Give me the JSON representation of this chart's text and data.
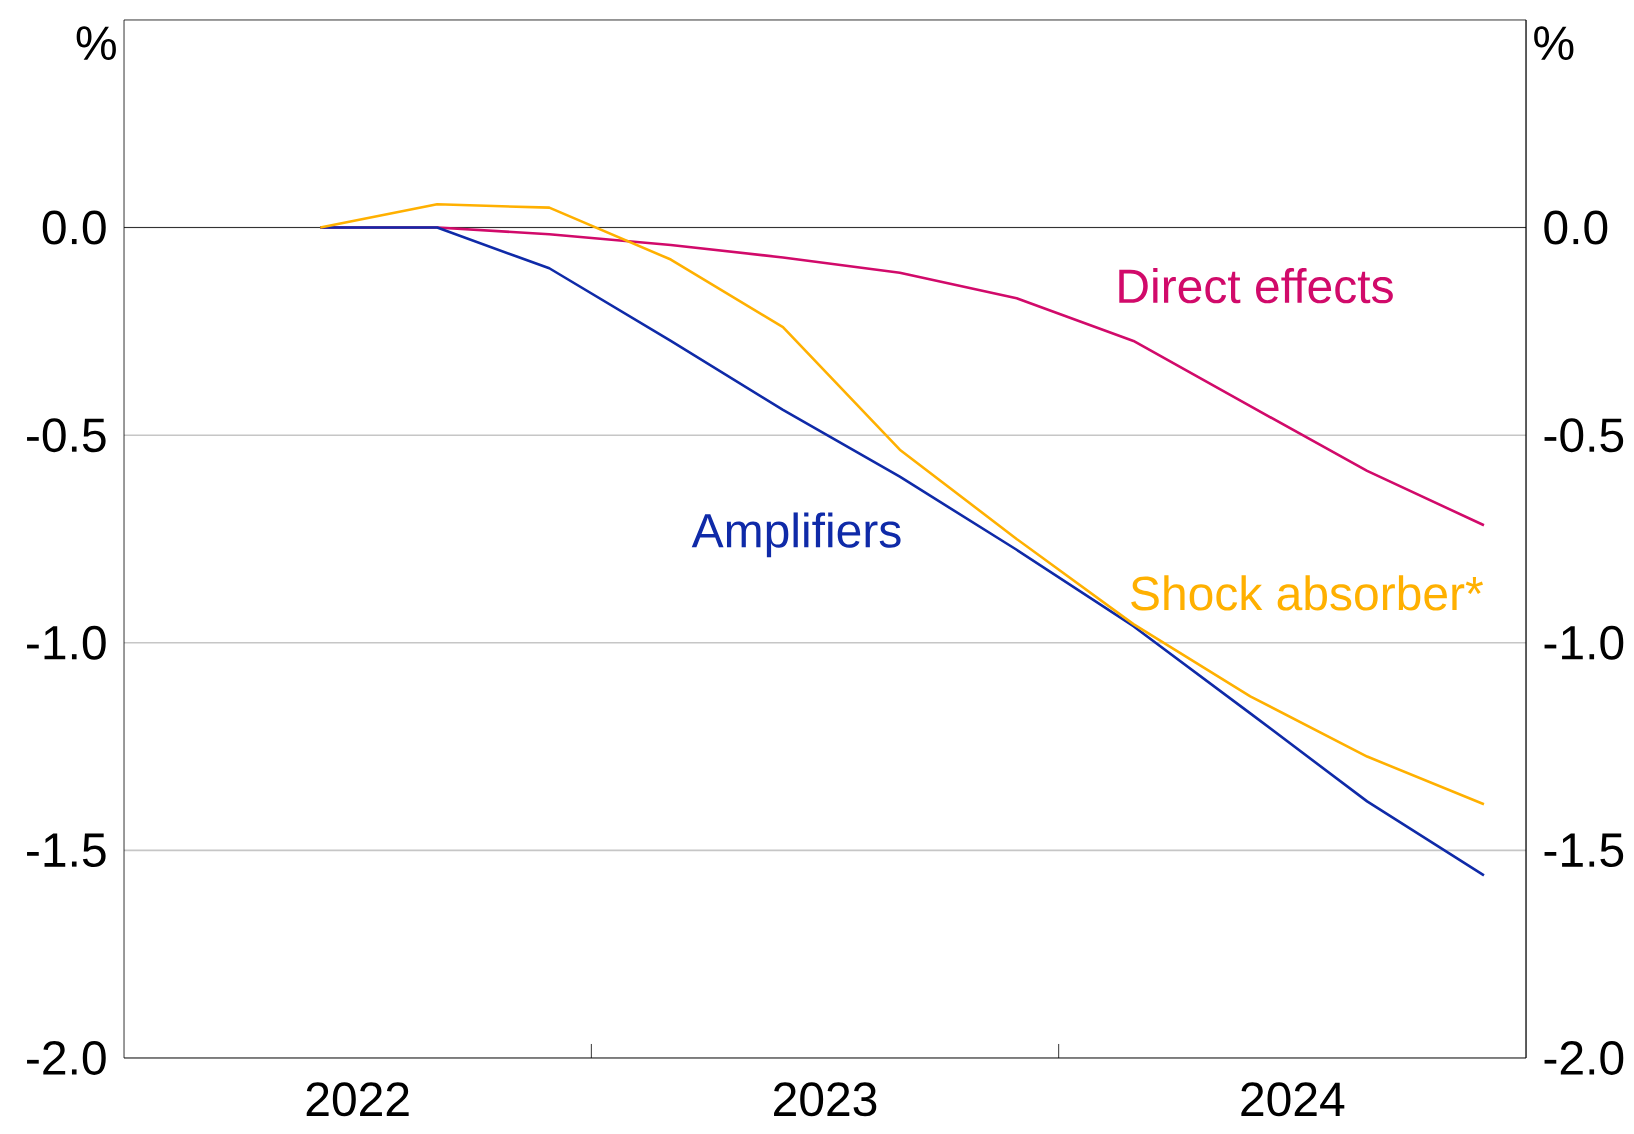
{
  "chart_data": {
    "type": "line",
    "x": [
      2022.42,
      2022.67,
      2022.91,
      2023.17,
      2023.41,
      2023.66,
      2023.91,
      2024.16,
      2024.41,
      2024.66,
      2024.91
    ],
    "series": [
      {
        "name": "Direct effects",
        "color": "#d10a6a",
        "values": [
          0,
          0,
          -0.016,
          -0.042,
          -0.072,
          -0.109,
          -0.17,
          -0.273,
          -0.43,
          -0.586,
          -0.717
        ]
      },
      {
        "name": "Amplifiers",
        "color": "#0f2aa8",
        "values": [
          0,
          0,
          -0.098,
          -0.273,
          -0.439,
          -0.6,
          -0.776,
          -0.96,
          -1.17,
          -1.382,
          -1.56
        ]
      },
      {
        "name": "Shock absorber*",
        "color": "#ffb000",
        "values": [
          0,
          0.056,
          0.048,
          -0.077,
          -0.24,
          -0.535,
          -0.75,
          -0.955,
          -1.129,
          -1.274,
          -1.389
        ]
      }
    ],
    "xlim": [
      2022,
      2025
    ],
    "xticks": [
      {
        "value": 2022.5,
        "label": "2022"
      },
      {
        "value": 2023,
        "label": null
      },
      {
        "value": 2023.5,
        "label": "2023"
      },
      {
        "value": 2024,
        "label": null
      },
      {
        "value": 2024.5,
        "label": "2024"
      }
    ],
    "ylim": [
      -2,
      0.5
    ],
    "yticks": [
      {
        "value": -2,
        "label": "-2.0"
      },
      {
        "value": -1.5,
        "label": "-1.5"
      },
      {
        "value": -1,
        "label": "-1.0"
      },
      {
        "value": -0.5,
        "label": "-0.5"
      },
      {
        "value": 0,
        "label": "0.0"
      }
    ],
    "y2lim": [
      -2,
      0.5
    ],
    "y2ticks": [
      {
        "value": -2,
        "label": "-2.0"
      },
      {
        "value": -1.5,
        "label": "-1.5"
      },
      {
        "value": -1,
        "label": "-1.0"
      },
      {
        "value": -0.5,
        "label": "-0.5"
      },
      {
        "value": 0,
        "label": "0.0"
      }
    ],
    "ylabel": "%",
    "y2label": "%",
    "grid": "y",
    "ref_lines": [
      {
        "axis": "y",
        "value": 0,
        "color": "#000000"
      }
    ]
  }
}
